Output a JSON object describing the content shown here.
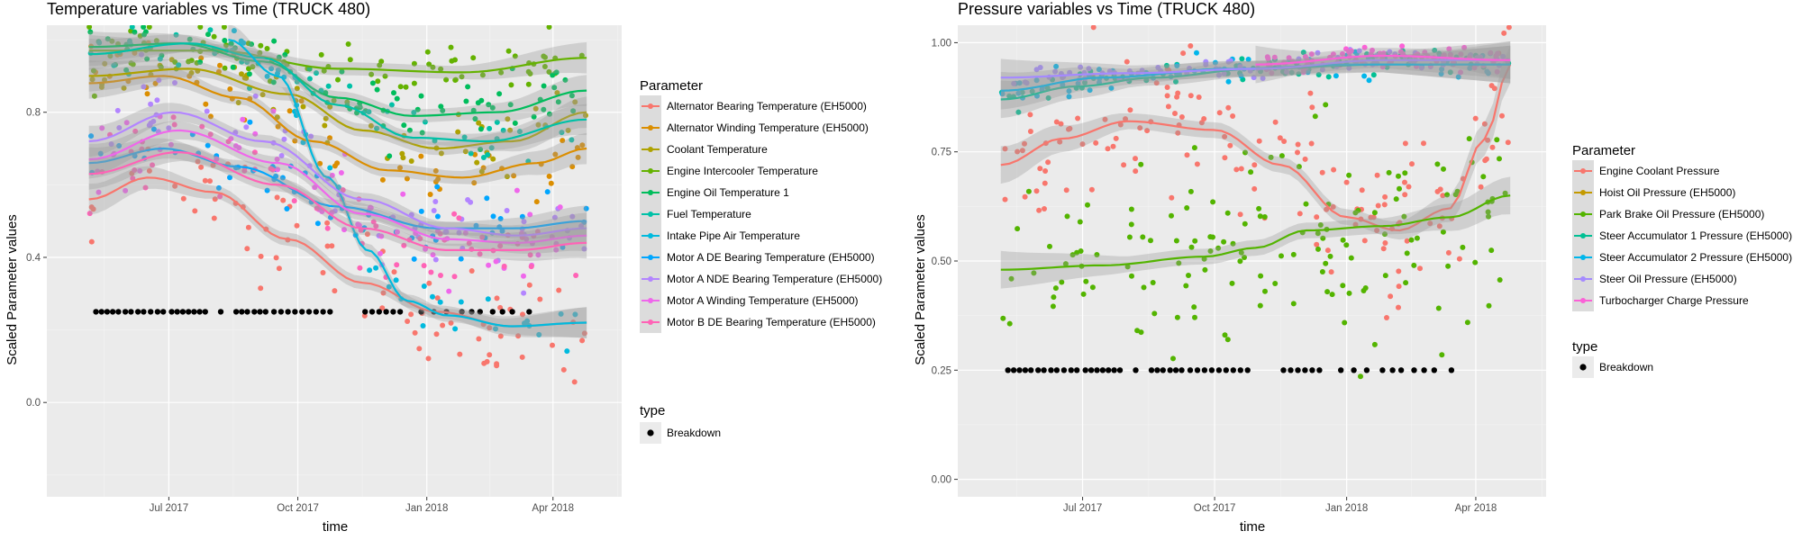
{
  "colors": {
    "panel_bg": "#ebebeb",
    "grid_major": "#ffffff",
    "ribbon": "#9a9a9a",
    "breakdown": "#000000"
  },
  "chart_data": [
    {
      "type": "scatter",
      "title": "Temperature variables vs Time (TRUCK 480)",
      "xlabel": "time",
      "ylabel": "Scaled Parameter values",
      "x_ticks": [
        "Jul 2017",
        "Oct 2017",
        "Jan 2018",
        "Apr 2018"
      ],
      "y_ticks": [
        "0.0",
        "0.4",
        "0.8"
      ],
      "xlim": [
        "2017-04-05",
        "2018-05-20"
      ],
      "ylim": [
        -0.26,
        1.04
      ],
      "x_range": [
        "2017-05-05",
        "2018-04-25"
      ],
      "grid": true,
      "smoothing": "loess fit with grey confidence band",
      "legend": {
        "title": "Parameter",
        "placement": "right",
        "items": [
          {
            "name": "Alternator Bearing Temperature (EH5000)",
            "color": "#F8766D"
          },
          {
            "name": "Alternator Winding Temperature (EH5000)",
            "color": "#DB8E00"
          },
          {
            "name": "Coolant Temperature",
            "color": "#AEA200"
          },
          {
            "name": "Engine Intercooler Temperature",
            "color": "#64B200"
          },
          {
            "name": "Engine Oil Temperature 1",
            "color": "#00BD5C"
          },
          {
            "name": "Fuel Temperature",
            "color": "#00C1A7"
          },
          {
            "name": "Intake Pipe Air Temperature",
            "color": "#00BADE"
          },
          {
            "name": "Motor A DE Bearing Temperature (EH5000)",
            "color": "#00A6FF"
          },
          {
            "name": "Motor A NDE Bearing Temperature (EH5000)",
            "color": "#B385FF"
          },
          {
            "name": "Motor A Winding Temperature (EH5000)",
            "color": "#EF67EB"
          },
          {
            "name": "Motor B DE Bearing Temperature (EH5000)",
            "color": "#FF63B6"
          }
        ]
      },
      "series": [
        {
          "color": "#F8766D",
          "smooth": [
            [
              0,
              0.56
            ],
            [
              0.12,
              0.62
            ],
            [
              0.25,
              0.58
            ],
            [
              0.4,
              0.45
            ],
            [
              0.55,
              0.33
            ],
            [
              0.7,
              0.25
            ],
            [
              0.85,
              0.21
            ],
            [
              1,
              0.22
            ]
          ],
          "points": 80,
          "spread": 0.12
        },
        {
          "color": "#DB8E00",
          "smooth": [
            [
              0,
              0.88
            ],
            [
              0.15,
              0.9
            ],
            [
              0.3,
              0.84
            ],
            [
              0.45,
              0.72
            ],
            [
              0.6,
              0.64
            ],
            [
              0.75,
              0.62
            ],
            [
              0.9,
              0.66
            ],
            [
              1,
              0.7
            ]
          ],
          "points": 55,
          "spread": 0.08
        },
        {
          "color": "#AEA200",
          "smooth": [
            [
              0,
              0.9
            ],
            [
              0.2,
              0.92
            ],
            [
              0.4,
              0.85
            ],
            [
              0.55,
              0.75
            ],
            [
              0.7,
              0.7
            ],
            [
              0.85,
              0.72
            ],
            [
              1,
              0.8
            ]
          ],
          "points": 55,
          "spread": 0.07
        },
        {
          "color": "#64B200",
          "smooth": [
            [
              0,
              0.97
            ],
            [
              0.25,
              0.97
            ],
            [
              0.5,
              0.92
            ],
            [
              0.75,
              0.91
            ],
            [
              1,
              0.95
            ]
          ],
          "points": 90,
          "spread": 0.06
        },
        {
          "color": "#00BD5C",
          "smooth": [
            [
              0,
              0.98
            ],
            [
              0.18,
              0.99
            ],
            [
              0.35,
              0.94
            ],
            [
              0.5,
              0.84
            ],
            [
              0.65,
              0.79
            ],
            [
              0.82,
              0.8
            ],
            [
              1,
              0.86
            ]
          ],
          "points": 85,
          "spread": 0.07
        },
        {
          "color": "#00C1A7",
          "smooth": [
            [
              0,
              0.96
            ],
            [
              0.2,
              0.99
            ],
            [
              0.35,
              0.95
            ],
            [
              0.5,
              0.82
            ],
            [
              0.65,
              0.73
            ],
            [
              0.8,
              0.72
            ],
            [
              1,
              0.78
            ]
          ],
          "points": 45,
          "spread": 0.06
        },
        {
          "color": "#00BADE",
          "smooth": [
            [
              0.28,
              1.0
            ],
            [
              0.38,
              0.9
            ],
            [
              0.48,
              0.62
            ],
            [
              0.56,
              0.42
            ],
            [
              0.64,
              0.28
            ],
            [
              0.72,
              0.24
            ],
            [
              0.85,
              0.21
            ],
            [
              1,
              0.22
            ]
          ],
          "points": 40,
          "spread": 0.05
        },
        {
          "color": "#00A6FF",
          "smooth": [
            [
              0,
              0.66
            ],
            [
              0.15,
              0.7
            ],
            [
              0.3,
              0.65
            ],
            [
              0.5,
              0.54
            ],
            [
              0.7,
              0.48
            ],
            [
              0.85,
              0.48
            ],
            [
              1,
              0.5
            ]
          ],
          "points": 60,
          "spread": 0.1
        },
        {
          "color": "#B385FF",
          "smooth": [
            [
              0,
              0.72
            ],
            [
              0.17,
              0.8
            ],
            [
              0.35,
              0.72
            ],
            [
              0.55,
              0.56
            ],
            [
              0.72,
              0.48
            ],
            [
              0.86,
              0.46
            ],
            [
              1,
              0.48
            ]
          ],
          "points": 60,
          "spread": 0.1
        },
        {
          "color": "#EF67EB",
          "smooth": [
            [
              0,
              0.67
            ],
            [
              0.18,
              0.75
            ],
            [
              0.38,
              0.66
            ],
            [
              0.55,
              0.52
            ],
            [
              0.72,
              0.45
            ],
            [
              0.86,
              0.44
            ],
            [
              1,
              0.46
            ]
          ],
          "points": 60,
          "spread": 0.1
        },
        {
          "color": "#FF63B6",
          "smooth": [
            [
              0,
              0.63
            ],
            [
              0.18,
              0.69
            ],
            [
              0.38,
              0.6
            ],
            [
              0.55,
              0.48
            ],
            [
              0.72,
              0.42
            ],
            [
              0.86,
              0.42
            ],
            [
              1,
              0.44
            ]
          ],
          "points": 60,
          "spread": 0.1
        }
      ],
      "breakdown": {
        "label": "Breakdown",
        "y": 0.25,
        "x": [
          "2017-05-10",
          "2017-05-14",
          "2017-05-18",
          "2017-05-22",
          "2017-05-26",
          "2017-05-31",
          "2017-06-04",
          "2017-06-09",
          "2017-06-13",
          "2017-06-18",
          "2017-06-23",
          "2017-06-27",
          "2017-07-03",
          "2017-07-07",
          "2017-07-11",
          "2017-07-15",
          "2017-07-19",
          "2017-07-23",
          "2017-07-27",
          "2017-08-07",
          "2017-08-18",
          "2017-08-22",
          "2017-08-26",
          "2017-08-31",
          "2017-09-04",
          "2017-09-08",
          "2017-09-14",
          "2017-09-19",
          "2017-09-24",
          "2017-09-29",
          "2017-10-04",
          "2017-10-09",
          "2017-10-14",
          "2017-10-19",
          "2017-10-24",
          "2017-11-18",
          "2017-11-23",
          "2017-11-28",
          "2017-12-03",
          "2017-12-08",
          "2017-12-13",
          "2017-12-28",
          "2018-01-06",
          "2018-01-15",
          "2018-01-26",
          "2018-02-02",
          "2018-02-08",
          "2018-02-17",
          "2018-02-24",
          "2018-03-03",
          "2018-03-15"
        ]
      }
    },
    {
      "type": "scatter",
      "title": "Pressure variables vs Time (TRUCK 480)",
      "xlabel": "time",
      "ylabel": "Scaled Parameter values",
      "x_ticks": [
        "Jul 2017",
        "Oct 2017",
        "Jan 2018",
        "Apr 2018"
      ],
      "y_ticks": [
        "0.00",
        "0.25",
        "0.50",
        "0.75",
        "1.00"
      ],
      "xlim": [
        "2017-04-05",
        "2018-05-20"
      ],
      "ylim": [
        -0.04,
        1.04
      ],
      "x_range": [
        "2017-05-05",
        "2018-04-25"
      ],
      "grid": true,
      "smoothing": "loess fit with grey confidence band",
      "legend": {
        "title": "Parameter",
        "placement": "right",
        "items": [
          {
            "name": "Engine Coolant Pressure",
            "color": "#F8766D"
          },
          {
            "name": "Hoist Oil Pressure (EH5000)",
            "color": "#C49A00"
          },
          {
            "name": "Park Brake Oil Pressure (EH5000)",
            "color": "#53B400"
          },
          {
            "name": "Steer Accumulator 1 Pressure (EH5000)",
            "color": "#00C094"
          },
          {
            "name": "Steer Accumulator 2 Pressure (EH5000)",
            "color": "#00B6EB"
          },
          {
            "name": "Steer Oil Pressure (EH5000)",
            "color": "#A58AFF"
          },
          {
            "name": "Turbocharger Charge Pressure",
            "color": "#FB61D7"
          }
        ]
      },
      "series": [
        {
          "color": "#F8766D",
          "smooth": [
            [
              0,
              0.72
            ],
            [
              0.12,
              0.78
            ],
            [
              0.25,
              0.82
            ],
            [
              0.42,
              0.8
            ],
            [
              0.55,
              0.72
            ],
            [
              0.68,
              0.6
            ],
            [
              0.78,
              0.57
            ],
            [
              0.88,
              0.62
            ],
            [
              0.95,
              0.78
            ],
            [
              1,
              0.95
            ]
          ],
          "points": 150,
          "spread": 0.14
        },
        {
          "color": "#53B400",
          "smooth": [
            [
              0,
              0.48
            ],
            [
              0.2,
              0.49
            ],
            [
              0.4,
              0.51
            ],
            [
              0.5,
              0.53
            ],
            [
              0.6,
              0.57
            ],
            [
              0.75,
              0.58
            ],
            [
              0.88,
              0.6
            ],
            [
              1,
              0.65
            ]
          ],
          "points": 150,
          "spread": 0.2
        },
        {
          "color": "#00C094",
          "smooth": [
            [
              0,
              0.87
            ],
            [
              0.15,
              0.9
            ],
            [
              0.3,
              0.92
            ],
            [
              0.5,
              0.94
            ],
            [
              0.75,
              0.95
            ],
            [
              1,
              0.95
            ]
          ],
          "points": 70,
          "spread": 0.03
        },
        {
          "color": "#00B6EB",
          "smooth": [
            [
              0,
              0.89
            ],
            [
              0.2,
              0.92
            ],
            [
              0.45,
              0.94
            ],
            [
              0.7,
              0.95
            ],
            [
              1,
              0.95
            ]
          ],
          "points": 70,
          "spread": 0.03
        },
        {
          "color": "#A58AFF",
          "smooth": [
            [
              0,
              0.92
            ],
            [
              0.25,
              0.93
            ],
            [
              0.5,
              0.94
            ],
            [
              0.75,
              0.96
            ],
            [
              1,
              0.96
            ]
          ],
          "points": 90,
          "spread": 0.02
        },
        {
          "color": "#FB61D7",
          "smooth": [
            [
              0.5,
              0.95
            ],
            [
              0.75,
              0.97
            ],
            [
              1,
              0.96
            ]
          ],
          "points": 70,
          "spread": 0.02
        }
      ],
      "breakdown": {
        "label": "Breakdown",
        "y": 0.25,
        "x": [
          "2017-05-10",
          "2017-05-14",
          "2017-05-18",
          "2017-05-22",
          "2017-05-26",
          "2017-05-31",
          "2017-06-04",
          "2017-06-09",
          "2017-06-13",
          "2017-06-18",
          "2017-06-23",
          "2017-06-27",
          "2017-07-03",
          "2017-07-07",
          "2017-07-11",
          "2017-07-15",
          "2017-07-19",
          "2017-07-23",
          "2017-07-27",
          "2017-08-07",
          "2017-08-18",
          "2017-08-22",
          "2017-08-26",
          "2017-08-31",
          "2017-09-04",
          "2017-09-08",
          "2017-09-14",
          "2017-09-19",
          "2017-09-24",
          "2017-09-29",
          "2017-10-04",
          "2017-10-09",
          "2017-10-14",
          "2017-10-19",
          "2017-10-24",
          "2017-11-18",
          "2017-11-23",
          "2017-11-28",
          "2017-12-03",
          "2017-12-08",
          "2017-12-13",
          "2017-12-28",
          "2018-01-06",
          "2018-01-15",
          "2018-01-26",
          "2018-02-02",
          "2018-02-08",
          "2018-02-17",
          "2018-02-24",
          "2018-03-03",
          "2018-03-15"
        ]
      },
      "type_legend": {
        "title": "type"
      }
    }
  ],
  "type_legend": {
    "title": "type",
    "label": "Breakdown"
  }
}
